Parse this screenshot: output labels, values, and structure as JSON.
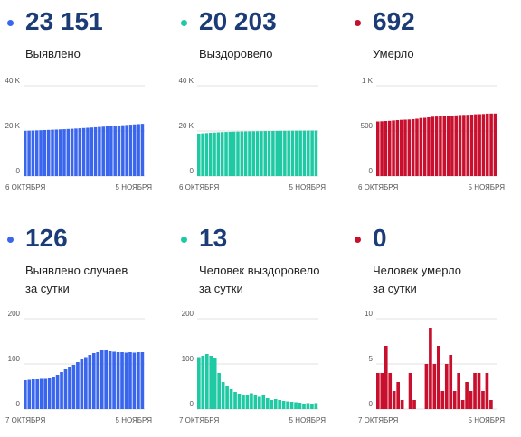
{
  "chart_data": [
    {
      "type": "bar",
      "headline": "23 151",
      "label_lines": [
        "Выявлено"
      ],
      "color": "#3a66ee",
      "categories": [
        "6 ОКТЯБРЯ",
        null,
        null,
        null,
        null,
        null,
        null,
        null,
        null,
        null,
        null,
        null,
        null,
        null,
        null,
        null,
        null,
        null,
        null,
        null,
        null,
        null,
        null,
        null,
        null,
        null,
        null,
        null,
        null,
        null,
        "5 НОЯБРЯ"
      ],
      "values": [
        20066,
        20132,
        20198,
        20265,
        20332,
        20400,
        20470,
        20540,
        20615,
        20695,
        20780,
        20870,
        20965,
        21065,
        21170,
        21280,
        21395,
        21515,
        21640,
        21765,
        21891,
        22017,
        22143,
        22269,
        22395,
        22521,
        22647,
        22773,
        22899,
        23025,
        23151
      ],
      "ylim": [
        0,
        40000
      ],
      "yticks": [
        0,
        {
          "value": 20000,
          "label": "20 K"
        },
        {
          "value": 40000,
          "label": "40 K"
        }
      ],
      "grid": true
    },
    {
      "type": "bar",
      "headline": "20 203",
      "label_lines": [
        "Выздоровело"
      ],
      "color": "#1fc9a3",
      "categories": [
        "6 ОКТЯБРЯ",
        null,
        null,
        null,
        null,
        null,
        null,
        null,
        null,
        null,
        null,
        null,
        null,
        null,
        null,
        null,
        null,
        null,
        null,
        null,
        null,
        null,
        null,
        null,
        null,
        null,
        null,
        null,
        null,
        null,
        "5 НОЯБРЯ"
      ],
      "values": [
        18830,
        18945,
        19065,
        19185,
        19305,
        19420,
        19500,
        19565,
        19625,
        19675,
        19720,
        19760,
        19798,
        19834,
        19869,
        19904,
        19937,
        19967,
        19995,
        20020,
        20042,
        20064,
        20084,
        20102,
        20119,
        20135,
        20150,
        20164,
        20178,
        20190,
        20203
      ],
      "ylim": [
        0,
        40000
      ],
      "yticks": [
        0,
        {
          "value": 20000,
          "label": "20 K"
        },
        {
          "value": 40000,
          "label": "40 K"
        }
      ],
      "grid": true
    },
    {
      "type": "bar",
      "headline": "692",
      "label_lines": [
        "Умерло"
      ],
      "color": "#c8102e",
      "categories": [
        "6 ОКТЯБРЯ",
        null,
        null,
        null,
        null,
        null,
        null,
        null,
        null,
        null,
        null,
        null,
        null,
        null,
        null,
        null,
        null,
        null,
        null,
        null,
        null,
        null,
        null,
        null,
        null,
        null,
        null,
        null,
        null,
        null,
        "5 НОЯБРЯ"
      ],
      "values": [
        605,
        607,
        610,
        612,
        616,
        620,
        623,
        625,
        627,
        630,
        635,
        643,
        645,
        650,
        657,
        659,
        661,
        664,
        666,
        670,
        672,
        676,
        677,
        678,
        680,
        684,
        685,
        687,
        691,
        692,
        692
      ],
      "ylim": [
        0,
        1000
      ],
      "yticks": [
        0,
        500,
        {
          "value": 1000,
          "label": "1 K"
        }
      ],
      "grid": true
    },
    {
      "type": "bar",
      "headline": "126",
      "label_lines": [
        "Выявлено случаев",
        "за сутки"
      ],
      "color": "#3a66ee",
      "categories": [
        "7 ОКТЯБРЯ",
        null,
        null,
        null,
        null,
        null,
        null,
        null,
        null,
        null,
        null,
        null,
        null,
        null,
        null,
        null,
        null,
        null,
        null,
        null,
        null,
        null,
        null,
        null,
        null,
        null,
        null,
        null,
        null,
        "5 НОЯБРЯ"
      ],
      "values": [
        64,
        65,
        66,
        66,
        67,
        67,
        68,
        72,
        76,
        82,
        88,
        94,
        98,
        104,
        110,
        115,
        120,
        124,
        126,
        130,
        130,
        128,
        127,
        126,
        126,
        125,
        126,
        125,
        126,
        126
      ],
      "ylim": [
        0,
        200
      ],
      "yticks": [
        0,
        100,
        200
      ],
      "grid": true
    },
    {
      "type": "bar",
      "headline": "13",
      "label_lines": [
        "Человек выздоровело",
        "за сутки"
      ],
      "color": "#1fc9a3",
      "categories": [
        "7 ОКТЯБРЯ",
        null,
        null,
        null,
        null,
        null,
        null,
        null,
        null,
        null,
        null,
        null,
        null,
        null,
        null,
        null,
        null,
        null,
        null,
        null,
        null,
        null,
        null,
        null,
        null,
        null,
        null,
        null,
        null,
        "5 НОЯБРЯ"
      ],
      "values": [
        115,
        118,
        122,
        118,
        114,
        80,
        60,
        50,
        44,
        38,
        34,
        30,
        32,
        35,
        30,
        27,
        30,
        24,
        20,
        22,
        20,
        18,
        17,
        16,
        15,
        14,
        12,
        13,
        12,
        13
      ],
      "ylim": [
        0,
        200
      ],
      "yticks": [
        0,
        100,
        200
      ],
      "grid": true
    },
    {
      "type": "bar",
      "headline": "0",
      "label_lines": [
        "Человек умерло",
        "за сутки"
      ],
      "color": "#c8102e",
      "categories": [
        "7 ОКТЯБРЯ",
        null,
        null,
        null,
        null,
        null,
        null,
        null,
        null,
        null,
        null,
        null,
        null,
        null,
        null,
        null,
        null,
        null,
        null,
        null,
        null,
        null,
        null,
        null,
        null,
        null,
        null,
        null,
        null,
        "5 НОЯБРЯ"
      ],
      "values": [
        4,
        4,
        7,
        4,
        2,
        3,
        1,
        0,
        4,
        1,
        0,
        0,
        5,
        9,
        5,
        7,
        2,
        5,
        6,
        2,
        4,
        1,
        3,
        2,
        4,
        4,
        2,
        4,
        1,
        0
      ],
      "ylim": [
        0,
        10
      ],
      "yticks": [
        0,
        5,
        10
      ],
      "grid": true
    }
  ]
}
